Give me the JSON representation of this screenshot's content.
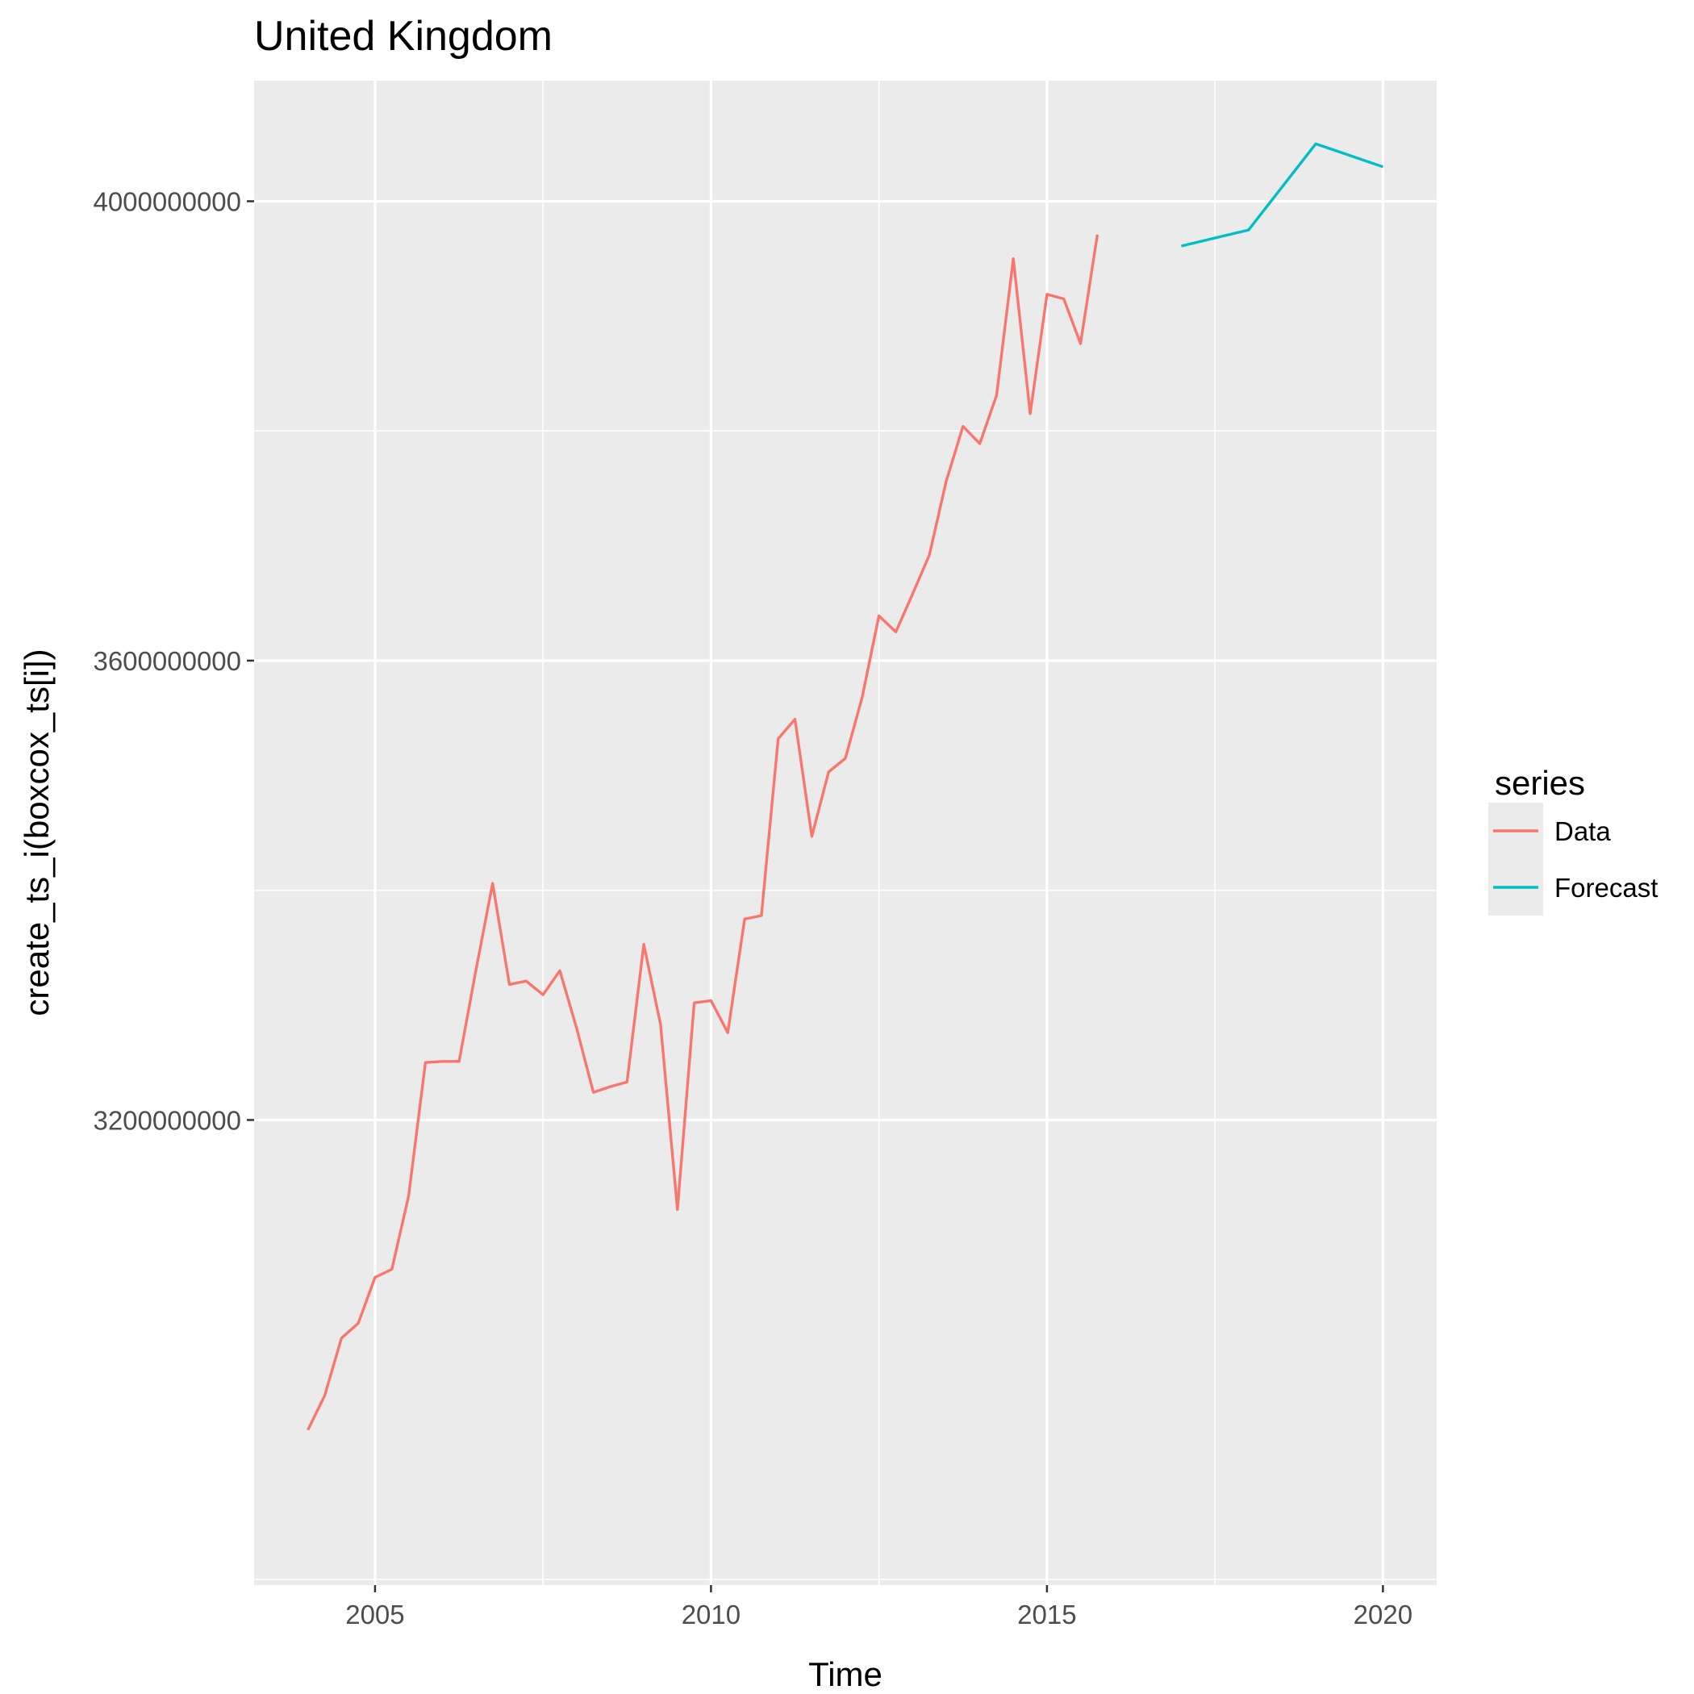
{
  "chart_data": {
    "type": "line",
    "title": "United Kingdom",
    "xlabel": "Time",
    "ylabel": "create_ts_i(boxcox_ts[i])",
    "xlim": [
      2003.2,
      2020.8
    ],
    "ylim": [
      2795000000,
      4105000000
    ],
    "x_ticks": [
      2005,
      2010,
      2015,
      2020
    ],
    "x_tick_labels": [
      "2005",
      "2010",
      "2015",
      "2020"
    ],
    "y_ticks": [
      3200000000,
      3600000000,
      4000000000
    ],
    "y_tick_labels": [
      "3200000000",
      "3600000000",
      "4000000000"
    ],
    "y_minor_ticks": [
      2800000000,
      3400000000,
      3800000000
    ],
    "grid": true,
    "background": "#ebebeb",
    "grid_color": "#ffffff",
    "legend": {
      "title": "series",
      "position": "right",
      "entries": [
        {
          "label": "Data",
          "color": "#f8766d"
        },
        {
          "label": "Forecast",
          "color": "#00bfc4"
        }
      ]
    },
    "series": [
      {
        "name": "Data",
        "color": "#f8766d",
        "x": [
          2004.0,
          2004.25,
          2004.5,
          2004.75,
          2005.0,
          2005.25,
          2005.5,
          2005.75,
          2006.0,
          2006.25,
          2006.5,
          2006.75,
          2007.0,
          2007.25,
          2007.5,
          2007.75,
          2008.0,
          2008.25,
          2008.5,
          2008.75,
          2009.0,
          2009.25,
          2009.5,
          2009.75,
          2010.0,
          2010.25,
          2010.5,
          2010.75,
          2011.0,
          2011.25,
          2011.5,
          2011.75,
          2012.0,
          2012.25,
          2012.5,
          2012.75,
          2013.0,
          2013.25,
          2013.5,
          2013.75,
          2014.0,
          2014.25,
          2014.5,
          2014.75,
          2015.0,
          2015.25,
          2015.5,
          2015.75
        ],
        "values": [
          2930000000,
          2960000000,
          3010000000,
          3023000000,
          3063000000,
          3070000000,
          3134000000,
          3250000000,
          3251000000,
          3251000000,
          3330000000,
          3406000000,
          3318000000,
          3321000000,
          3309000000,
          3330000000,
          3280000000,
          3224000000,
          3229000000,
          3233000000,
          3353000000,
          3283000000,
          3122000000,
          3302000000,
          3304000000,
          3276000000,
          3375000000,
          3378000000,
          3532000000,
          3549000000,
          3447000000,
          3503000000,
          3515000000,
          3568000000,
          3639000000,
          3625000000,
          3658000000,
          3692000000,
          3756000000,
          3804000000,
          3789000000,
          3831000000,
          3950000000,
          3815000000,
          3919000000,
          3915000000,
          3876000000,
          3971000000
        ]
      },
      {
        "name": "Forecast",
        "color": "#00bfc4",
        "x": [
          2017.0,
          2018.0,
          2019.0,
          2020.0
        ],
        "values": [
          3961000000,
          3975000000,
          4050000000,
          4030000000
        ]
      }
    ]
  }
}
